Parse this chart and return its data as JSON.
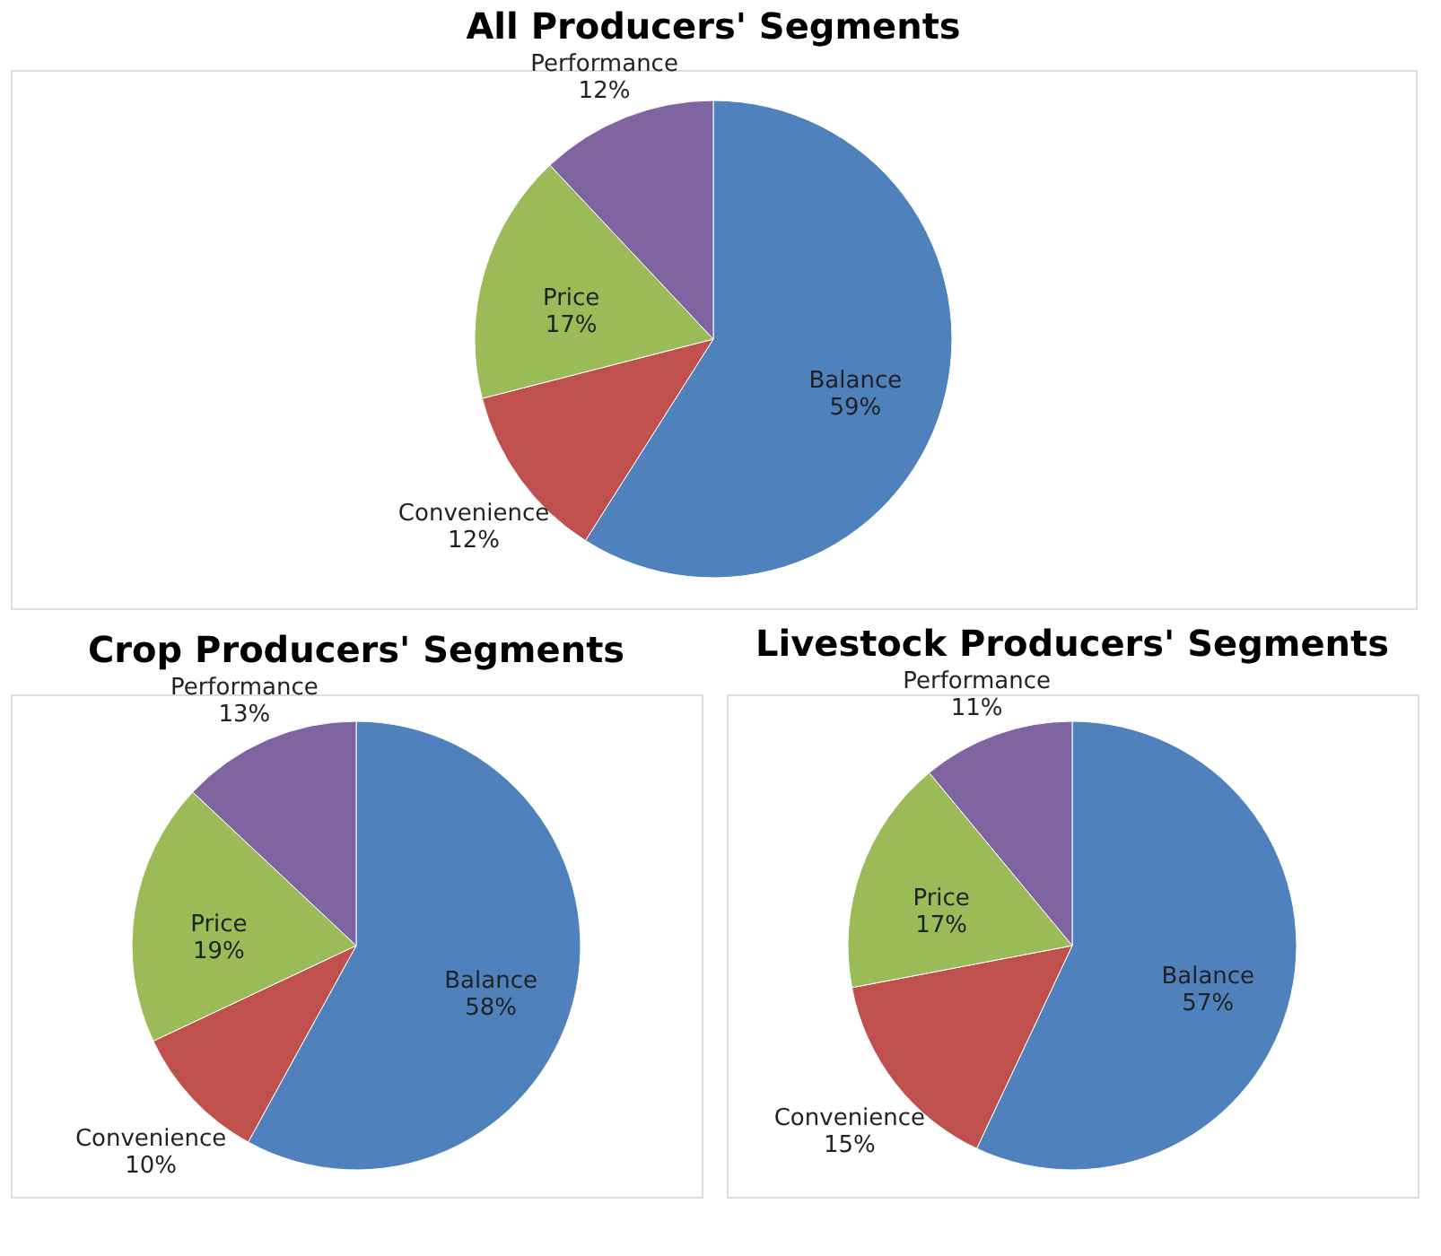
{
  "chart_data": [
    {
      "type": "pie",
      "title": "All Producers' Segments",
      "categories": [
        "Balance",
        "Convenience",
        "Price",
        "Performance"
      ],
      "values": [
        59,
        12,
        17,
        12
      ],
      "colors": [
        "#4f81bd",
        "#c0504d",
        "#9bbb59",
        "#8064a2"
      ],
      "value_labels": [
        "59%",
        "12%",
        "17%",
        "12%"
      ],
      "legend": false
    },
    {
      "type": "pie",
      "title": "Crop Producers' Segments",
      "categories": [
        "Balance",
        "Convenience",
        "Price",
        "Performance"
      ],
      "values": [
        58,
        10,
        19,
        13
      ],
      "colors": [
        "#4f81bd",
        "#c0504d",
        "#9bbb59",
        "#8064a2"
      ],
      "value_labels": [
        "58%",
        "10%",
        "19%",
        "13%"
      ],
      "legend": false
    },
    {
      "type": "pie",
      "title": "Livestock Producers' Segments",
      "categories": [
        "Balance",
        "Convenience",
        "Price",
        "Performance"
      ],
      "values": [
        57,
        15,
        17,
        11
      ],
      "colors": [
        "#4f81bd",
        "#c0504d",
        "#9bbb59",
        "#8064a2"
      ],
      "value_labels": [
        "57%",
        "15%",
        "17%",
        "11%"
      ],
      "legend": false
    }
  ]
}
